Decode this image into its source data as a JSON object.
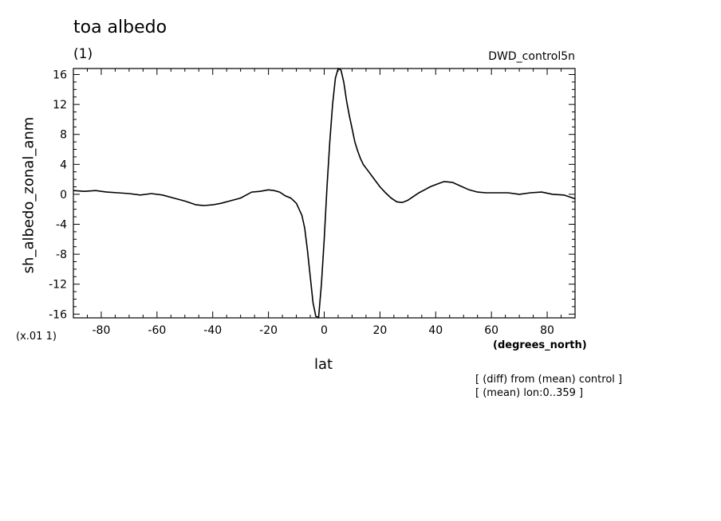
{
  "header": {
    "title": "toa albedo",
    "units": "(1)",
    "run_name": "DWD_control5n"
  },
  "footer": {
    "scale_note": "(x.01 1)",
    "x_units": "(degrees_north)",
    "x_label": "lat",
    "note_line1": "[ (diff) from (mean) control ]",
    "note_line2": "[ (mean) lon:0..359 ]"
  },
  "axes": {
    "y_label": "sh_albedo_zonal_anm"
  },
  "chart_data": {
    "type": "line",
    "title": "toa albedo",
    "xlabel": "lat",
    "ylabel": "sh_albedo_zonal_anm",
    "xlim": [
      -90,
      90
    ],
    "ylim": [
      -16.5,
      16.8
    ],
    "xticks": [
      -80,
      -60,
      -40,
      -20,
      0,
      20,
      40,
      60,
      80
    ],
    "xtick_labels": [
      "-80",
      "-60",
      "-40",
      "-20",
      "0",
      "20",
      "40",
      "60",
      "80"
    ],
    "yticks": [
      -16,
      -12,
      -8,
      -4,
      0,
      4,
      8,
      12,
      16
    ],
    "ytick_labels": [
      "-16",
      "-12",
      "-8",
      "-4",
      "0",
      "4",
      "8",
      "12",
      "16"
    ],
    "grid": false,
    "series": [
      {
        "color": "#000000",
        "x": [
          -90,
          -86,
          -82,
          -78,
          -74,
          -70,
          -66,
          -62,
          -58,
          -54,
          -50,
          -46,
          -43,
          -40,
          -37,
          -34,
          -30,
          -26,
          -23,
          -20,
          -18,
          -16,
          -14,
          -12,
          -10,
          -8,
          -7,
          -6,
          -5,
          -4,
          -3,
          -2,
          -1,
          0,
          1,
          2,
          3,
          4,
          5,
          6,
          7,
          8,
          9,
          10,
          11,
          12,
          13,
          14,
          16,
          18,
          20,
          22,
          24,
          26,
          28,
          30,
          32,
          34,
          36,
          38,
          40,
          43,
          46,
          49,
          52,
          55,
          58,
          62,
          66,
          70,
          74,
          78,
          82,
          86,
          90
        ],
        "y": [
          0.5,
          0.4,
          0.5,
          0.3,
          0.2,
          0.1,
          -0.1,
          0.1,
          -0.1,
          -0.5,
          -0.9,
          -1.4,
          -1.5,
          -1.4,
          -1.2,
          -0.9,
          -0.5,
          0.3,
          0.4,
          0.6,
          0.5,
          0.3,
          -0.2,
          -0.5,
          -1.2,
          -2.8,
          -4.5,
          -7.5,
          -11.0,
          -14.5,
          -16.3,
          -16.4,
          -12.0,
          -6.0,
          1.0,
          7.0,
          12.0,
          15.5,
          16.8,
          16.6,
          15.0,
          12.5,
          10.5,
          8.8,
          7.0,
          5.8,
          4.8,
          4.0,
          3.0,
          2.0,
          1.0,
          0.2,
          -0.5,
          -1.0,
          -1.1,
          -0.8,
          -0.3,
          0.2,
          0.6,
          1.0,
          1.3,
          1.7,
          1.6,
          1.1,
          0.6,
          0.3,
          0.2,
          0.2,
          0.2,
          0.0,
          0.2,
          0.3,
          0.0,
          -0.1,
          -0.6
        ]
      }
    ]
  }
}
